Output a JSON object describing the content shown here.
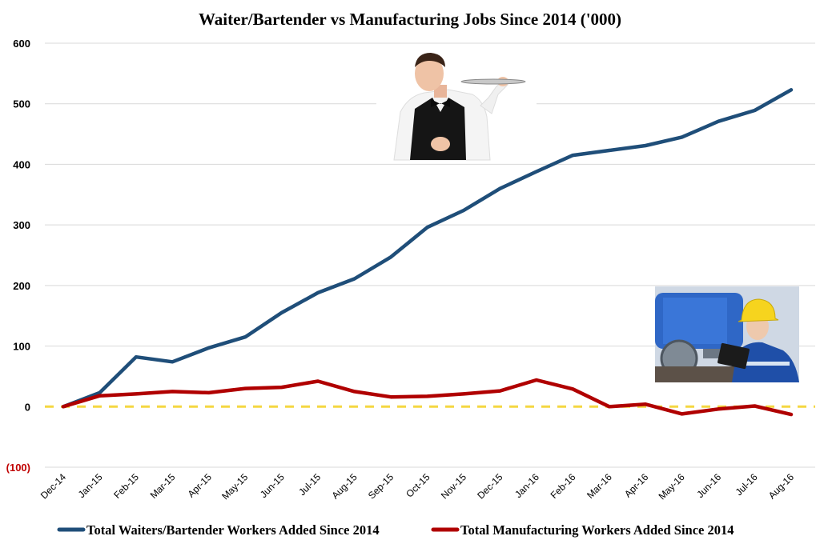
{
  "chart_data": {
    "type": "line",
    "title": "Waiter/Bartender vs Manufacturing Jobs Since 2014 ('000)",
    "xlabel": "",
    "ylabel": "",
    "ylim": [
      -100,
      600
    ],
    "yticks": [
      {
        "value": 600,
        "label": "600"
      },
      {
        "value": 500,
        "label": "500"
      },
      {
        "value": 400,
        "label": "400"
      },
      {
        "value": 300,
        "label": "300"
      },
      {
        "value": 200,
        "label": "200"
      },
      {
        "value": 100,
        "label": "100"
      },
      {
        "value": 0,
        "label": "0"
      },
      {
        "value": -100,
        "label": "(100)"
      }
    ],
    "categories": [
      "Dec-14",
      "Jan-15",
      "Feb-15",
      "Mar-15",
      "Apr-15",
      "May-15",
      "Jun-15",
      "Jul-15",
      "Aug-15",
      "Sep-15",
      "Oct-15",
      "Nov-15",
      "Dec-15",
      "Jan-16",
      "Feb-16",
      "Mar-16",
      "Apr-16",
      "May-16",
      "Jun-16",
      "Jul-16",
      "Aug-16"
    ],
    "series": [
      {
        "name": "Total Waiters/Bartender Workers Added Since 2014",
        "color": "#1F4E79",
        "values": [
          0,
          23,
          82,
          74,
          97,
          115,
          155,
          188,
          211,
          247,
          296,
          324,
          360,
          388,
          415,
          423,
          431,
          445,
          471,
          489,
          523
        ]
      },
      {
        "name": "Total Manufacturing Workers Added Since 2014",
        "color": "#B00000",
        "values": [
          0,
          18,
          21,
          25,
          23,
          30,
          32,
          42,
          25,
          16,
          17,
          21,
          26,
          44,
          29,
          0,
          4,
          -12,
          -4,
          1,
          -13
        ]
      }
    ],
    "reference_line": {
      "value": 0,
      "color": "#F5D742",
      "style": "dashed"
    },
    "grid": true,
    "negative_label_color": "#C00000",
    "legend_position": "bottom",
    "images": [
      {
        "name": "waiter-photo",
        "description": "smiling waiter holding a tray"
      },
      {
        "name": "manufacturing-photo",
        "description": "worker in hard hat with tablet next to machinery"
      }
    ]
  }
}
